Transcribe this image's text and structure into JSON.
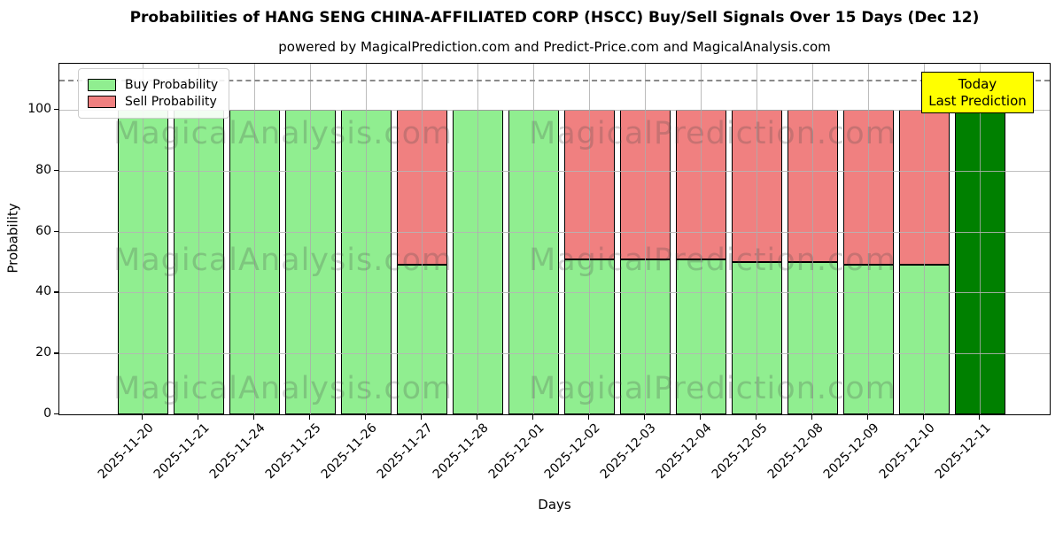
{
  "title": "Probabilities of HANG SENG CHINA-AFFILIATED CORP (HSCC) Buy/Sell Signals Over 15 Days (Dec 12)",
  "subtitle": "powered by MagicalPrediction.com and Predict-Price.com and MagicalAnalysis.com",
  "chart_data": {
    "type": "bar",
    "stacked": true,
    "xlabel": "Days",
    "ylabel": "Probability",
    "ylim": [
      0,
      115
    ],
    "yticks": [
      0,
      20,
      40,
      60,
      80,
      100
    ],
    "grid": true,
    "dashed_line_y": 110,
    "legend_position": "upper left",
    "categories": [
      "2025-11-20",
      "2025-11-21",
      "2025-11-24",
      "2025-11-25",
      "2025-11-26",
      "2025-11-27",
      "2025-11-28",
      "2025-12-01",
      "2025-12-02",
      "2025-12-03",
      "2025-12-04",
      "2025-12-05",
      "2025-12-08",
      "2025-12-09",
      "2025-12-10",
      "2025-12-11"
    ],
    "series": [
      {
        "name": "Buy Probability",
        "color": "#90ee90",
        "values": [
          100,
          100,
          100,
          100,
          100,
          49,
          100,
          100,
          51,
          51,
          51,
          50,
          50,
          49,
          49,
          100
        ]
      },
      {
        "name": "Sell Probability",
        "color": "#f08080",
        "values": [
          0,
          0,
          0,
          0,
          0,
          51,
          0,
          0,
          49,
          49,
          49,
          50,
          50,
          51,
          51,
          0
        ]
      }
    ],
    "highlight": {
      "category": "2025-12-11",
      "index": 15,
      "color": "#008000",
      "label": "Today Last Prediction"
    }
  },
  "annotation": {
    "line1": "Today",
    "line2": "Last Prediction",
    "bg_color": "#ffff00"
  },
  "watermarks": {
    "left": "MagicalAnalysis.com",
    "right": "MagicalPrediction.com"
  },
  "colors": {
    "buy": "#90ee90",
    "sell": "#f08080",
    "today_bar": "#008000",
    "grid": "#b0b0b0",
    "dashed_line": "#8a8a8a",
    "annotation_bg": "#ffff00"
  }
}
